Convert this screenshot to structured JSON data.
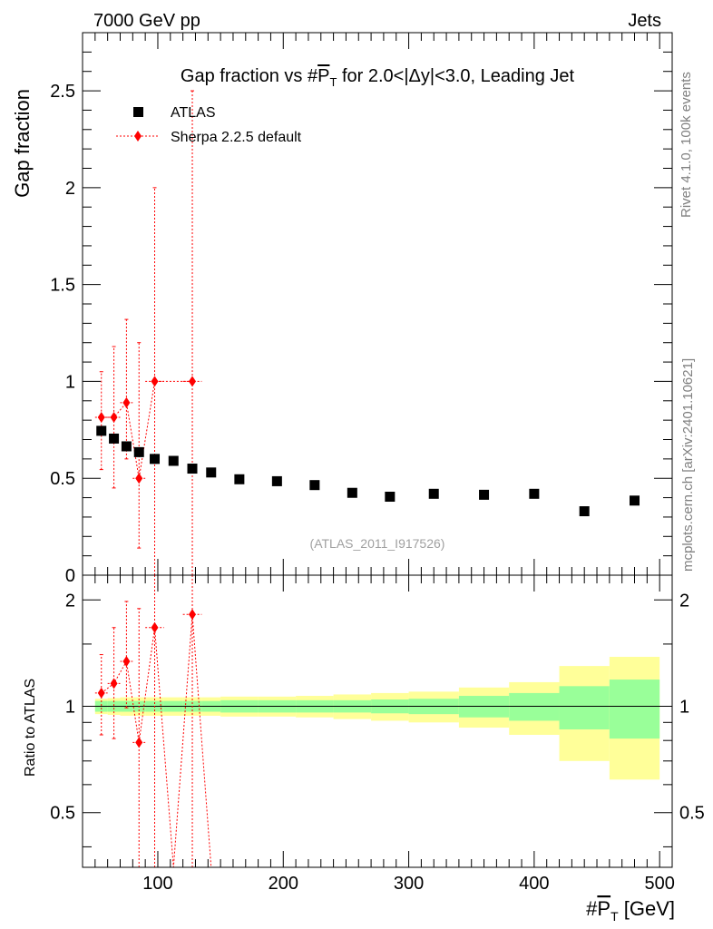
{
  "header": {
    "left": "7000 GeV pp",
    "right": "Jets"
  },
  "side_labels": {
    "rivet": "Rivet 4.1.0,  100k events",
    "mcplots": "mcplots.cern.ch [arXiv:2401.10621]"
  },
  "chart_data": {
    "type": "scatter",
    "title": "Gap fraction vs #P̄T for 2.0<|Δy|<3.0, Leading Jet",
    "title_parts": {
      "pre": "Gap fraction vs #",
      "sym": "P",
      "sub": "T",
      "post": " for 2.0<|Δy|<3.0, Leading Jet"
    },
    "xlabel": {
      "pre": "#",
      "sym": "P",
      "sub": "T",
      "post": " [GeV]"
    },
    "ylabel_top": "Gap fraction",
    "ylabel_bottom": "Ratio to ATLAS",
    "analysis_label": "(ATLAS_2011_I917526)",
    "xlim": [
      40,
      510
    ],
    "ylim_top": [
      0,
      2.8
    ],
    "ylim_bottom": [
      0.35,
      2.35
    ],
    "x_ticks": [
      100,
      200,
      300,
      400,
      500
    ],
    "x_tick_labels": [
      "100",
      "200",
      "300",
      "400",
      "500"
    ],
    "y_ticks_top": [
      0,
      0.5,
      1,
      1.5,
      2,
      2.5
    ],
    "y_tick_labels_top": [
      "0",
      "0.5",
      "1",
      "1.5",
      "2",
      "2.5"
    ],
    "y_ticks_bottom": [
      0.5,
      1,
      2
    ],
    "y_tick_labels_bottom": [
      "0.5",
      "1",
      "2"
    ],
    "legend": [
      {
        "name": "ATLAS",
        "marker": "square",
        "color": "#000000"
      },
      {
        "name": "Sherpa 2.2.5 default",
        "marker": "diamond",
        "color": "#ff0000"
      }
    ],
    "bins": [
      {
        "lo": 50,
        "hi": 60
      },
      {
        "lo": 60,
        "hi": 70
      },
      {
        "lo": 70,
        "hi": 80
      },
      {
        "lo": 80,
        "hi": 90
      },
      {
        "lo": 90,
        "hi": 105
      },
      {
        "lo": 105,
        "hi": 120
      },
      {
        "lo": 120,
        "hi": 135
      },
      {
        "lo": 135,
        "hi": 150
      },
      {
        "lo": 150,
        "hi": 180
      },
      {
        "lo": 180,
        "hi": 210
      },
      {
        "lo": 210,
        "hi": 240
      },
      {
        "lo": 240,
        "hi": 270
      },
      {
        "lo": 270,
        "hi": 300
      },
      {
        "lo": 300,
        "hi": 340
      },
      {
        "lo": 340,
        "hi": 380
      },
      {
        "lo": 380,
        "hi": 420
      },
      {
        "lo": 420,
        "hi": 460
      },
      {
        "lo": 460,
        "hi": 500
      }
    ],
    "atlas": {
      "name": "ATLAS",
      "x": [
        55,
        65,
        75,
        85,
        97.5,
        112.5,
        127.5,
        142.5,
        165,
        195,
        225,
        255,
        285,
        320,
        360,
        400,
        440,
        480
      ],
      "y": [
        0.745,
        0.705,
        0.665,
        0.635,
        0.6,
        0.59,
        0.55,
        0.53,
        0.495,
        0.485,
        0.465,
        0.425,
        0.405,
        0.42,
        0.415,
        0.42,
        0.33,
        0.385
      ]
    },
    "sherpa": {
      "name": "Sherpa 2.2.5 default",
      "x": [
        55,
        65,
        75,
        85,
        97.5,
        112.5,
        127.5
      ],
      "y": [
        0.815,
        0.815,
        0.89,
        0.5,
        1.0,
        0.0,
        1.0
      ],
      "err_lo": [
        0.27,
        0.365,
        0.29,
        0.36,
        1.0,
        0.0,
        1.0
      ],
      "err_hi": [
        0.235,
        0.365,
        0.43,
        0.7,
        1.0,
        0.0,
        1.5
      ]
    },
    "ratio": {
      "x": [
        55,
        65,
        75,
        85,
        97.5,
        112.5,
        127.5,
        142.5
      ],
      "y": [
        1.09,
        1.16,
        1.34,
        0.79,
        1.67,
        0.0,
        1.82,
        0.0
      ],
      "err_lo": [
        0.26,
        0.35,
        0.35,
        0.45,
        1.67,
        0.0,
        1.82,
        0.0
      ],
      "err_hi": [
        0.31,
        0.51,
        0.64,
        1.1,
        1.67,
        0.0,
        2.7,
        0.0
      ]
    },
    "band_inner": [
      0.035,
      0.035,
      0.035,
      0.035,
      0.035,
      0.035,
      0.035,
      0.035,
      0.04,
      0.04,
      0.04,
      0.04,
      0.045,
      0.05,
      0.07,
      0.09,
      0.14,
      0.19
    ],
    "band_outer": [
      0.05,
      0.055,
      0.06,
      0.06,
      0.06,
      0.06,
      0.06,
      0.06,
      0.065,
      0.065,
      0.07,
      0.08,
      0.09,
      0.1,
      0.13,
      0.17,
      0.3,
      0.38
    ],
    "colors": {
      "band_inner": "#99ff99",
      "band_outer": "#ffff99",
      "atlas": "#000000",
      "sherpa": "#ff0000",
      "side_text": "#808080",
      "analysis_text": "#a0a0a0"
    }
  }
}
